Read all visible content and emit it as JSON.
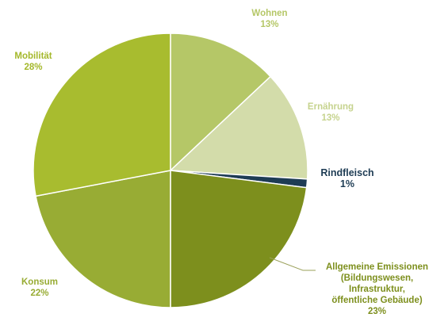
{
  "chart_data": {
    "type": "pie",
    "slices": [
      {
        "label": "Wohnen",
        "value": 13,
        "display": "13%",
        "color": "#b5c767",
        "label_color": "#b5c767"
      },
      {
        "label": "Ernährung",
        "value": 13,
        "display": "13%",
        "color": "#d3dcaa",
        "label_color": "#c6d38e"
      },
      {
        "label": "Rindfleisch",
        "value": 1,
        "display": "1%",
        "color": "#1e3c54",
        "label_color": "#1e3c54"
      },
      {
        "label": "Allgemeine Emissionen\n(Bildungswesen,\nInfrastruktur,\nöffentliche Gebäude)",
        "value": 23,
        "display": "23%",
        "color": "#7d8f1d",
        "label_color": "#7d8f1d"
      },
      {
        "label": "Konsum",
        "value": 22,
        "display": "22%",
        "color": "#98ac34",
        "label_color": "#98ac34"
      },
      {
        "label": "Mobilität",
        "value": 28,
        "display": "28%",
        "color": "#a8bc2f",
        "label_color": "#a4b82b"
      }
    ],
    "footnote": "",
    "legend": "none"
  }
}
